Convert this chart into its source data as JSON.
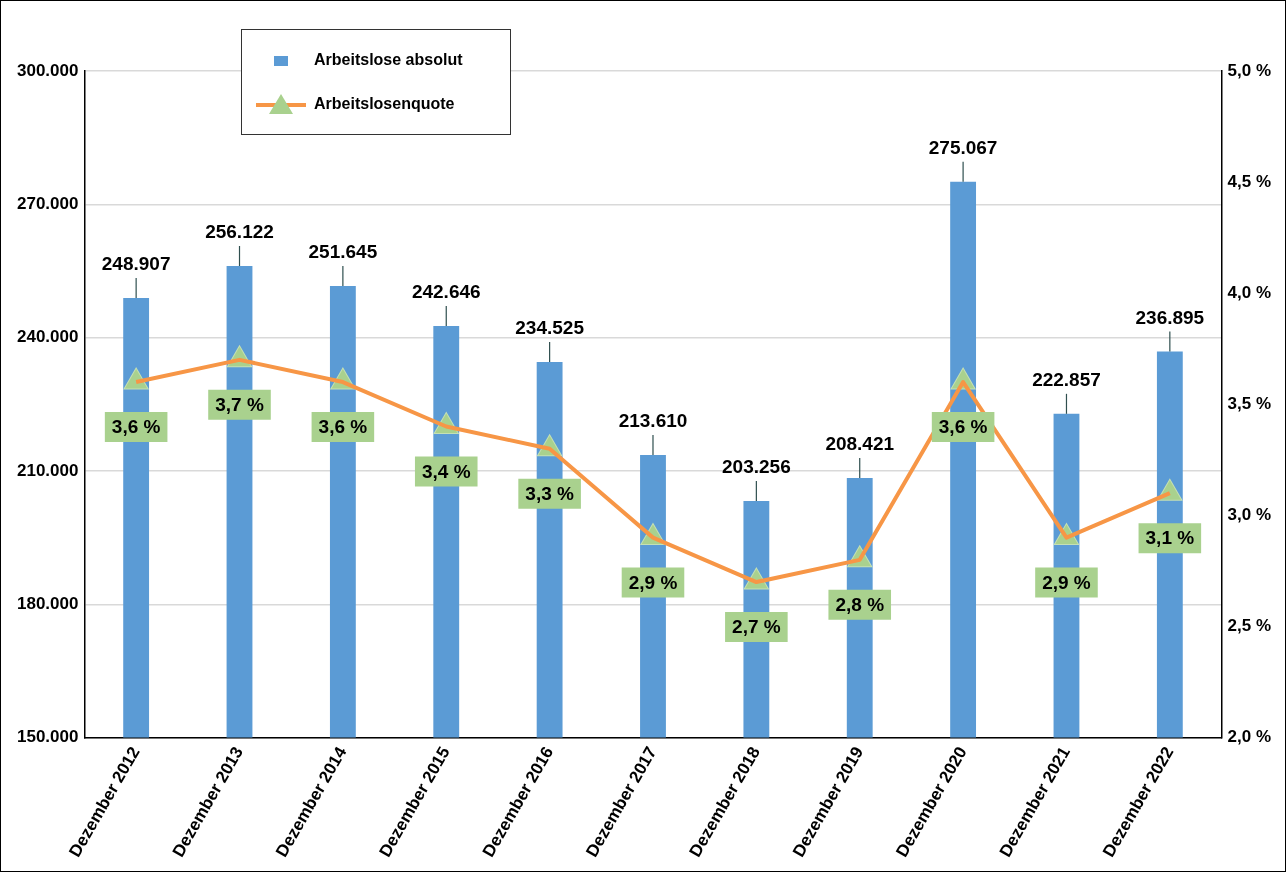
{
  "chart_data": {
    "type": "bar",
    "categories": [
      "Dezember 2012",
      "Dezember 2013",
      "Dezember 2014",
      "Dezember 2015",
      "Dezember 2016",
      "Dezember 2017",
      "Dezember 2018",
      "Dezember 2019",
      "Dezember 2020",
      "Dezember 2021",
      "Dezember 2022"
    ],
    "series": [
      {
        "name": "Arbeitslose absolut",
        "color": "#5b9bd5",
        "values": [
          248907,
          256122,
          251645,
          242646,
          234525,
          213610,
          203256,
          208421,
          275067,
          222857,
          236895
        ],
        "value_labels": [
          "248.907",
          "256.122",
          "251.645",
          "242.646",
          "234.525",
          "213.610",
          "203.256",
          "208.421",
          "275.067",
          "222.857",
          "236.895"
        ]
      },
      {
        "name": "Arbeitslosenquote",
        "type": "line",
        "axis": "y2",
        "color": "#f79646",
        "values": [
          3.6,
          3.7,
          3.6,
          3.4,
          3.3,
          2.9,
          2.7,
          2.8,
          3.6,
          2.9,
          3.1
        ],
        "value_labels": [
          "3,6 %",
          "3,7 %",
          "3,6 %",
          "3,4 %",
          "3,3 %",
          "2,9 %",
          "2,7 %",
          "2,8 %",
          "3,6 %",
          "2,9 %",
          "3,1 %"
        ]
      }
    ],
    "ylim": [
      150000,
      300000
    ],
    "yticks": [
      {
        "value": 150000,
        "label": "150.000"
      },
      {
        "value": 180000,
        "label": "180.000"
      },
      {
        "value": 210000,
        "label": "210.000"
      },
      {
        "value": 240000,
        "label": "240.000"
      },
      {
        "value": 270000,
        "label": "270.000"
      },
      {
        "value": 300000,
        "label": "300.000"
      }
    ],
    "y2lim": [
      2.0,
      5.0
    ],
    "y2ticks": [
      {
        "value": 2.0,
        "label": "2,0 %"
      },
      {
        "value": 2.5,
        "label": "2,5 %"
      },
      {
        "value": 3.0,
        "label": "3,0 %"
      },
      {
        "value": 3.5,
        "label": "3,5 %"
      },
      {
        "value": 4.0,
        "label": "4,0 %"
      },
      {
        "value": 4.5,
        "label": "4,5 %"
      },
      {
        "value": 5.0,
        "label": "5,0 %"
      }
    ],
    "grid": "y",
    "legend": "top left",
    "marker": "triangle",
    "line_style": "solid"
  }
}
